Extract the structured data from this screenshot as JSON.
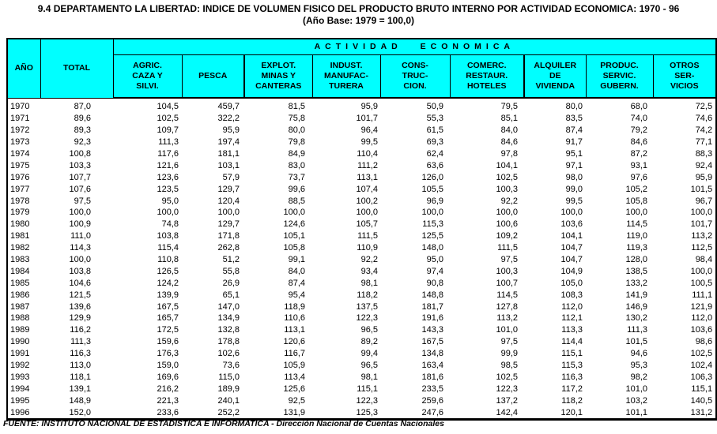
{
  "title": "9.4  DEPARTAMENTO  LA LIBERTAD: INDICE DE VOLUMEN FISICO DEL PRODUCTO BRUTO INTERNO POR ACTIVIDAD ECONOMICA: 1970 - 96",
  "subtitle": "(Año Base: 1979 = 100,0)",
  "footer": "FUENTE: INSTITUTO NACIONAL DE ESTADISTICA E INFORMATICA - Dirección Nacional de Cuentas Nacionales",
  "colors": {
    "header_bg": "#00FFFF",
    "border": "#000000",
    "text": "#000000"
  },
  "table": {
    "group_header": "ACTIVIDAD ECONOMICA",
    "col_year": "AÑO",
    "col_total": "TOTAL",
    "activity_columns": [
      {
        "lines": [
          "AGRIC.",
          "CAZA Y",
          "SILVI."
        ]
      },
      {
        "lines": [
          "PESCA"
        ]
      },
      {
        "lines": [
          "EXPLOT.",
          "MINAS  Y",
          "CANTERAS"
        ]
      },
      {
        "lines": [
          "INDUST.",
          "MANUFAC-",
          "TURERA"
        ]
      },
      {
        "lines": [
          "CONS-",
          "TRUC-",
          "CION."
        ]
      },
      {
        "lines": [
          "COMERC.",
          "RESTAUR.",
          "HOTELES"
        ]
      },
      {
        "lines": [
          "ALQUILER",
          "DE",
          "VIVIENDA"
        ]
      },
      {
        "lines": [
          "PRODUC.",
          "SERVIC.",
          "GUBERN."
        ]
      },
      {
        "lines": [
          "OTROS",
          "SER-",
          "VICIOS"
        ]
      }
    ],
    "rows": [
      {
        "year": "1970",
        "values": [
          "87,0",
          "104,5",
          "459,7",
          "81,5",
          "95,9",
          "50,9",
          "79,5",
          "80,0",
          "68,0",
          "72,5"
        ]
      },
      {
        "year": "1971",
        "values": [
          "89,6",
          "102,5",
          "322,2",
          "75,8",
          "101,7",
          "55,3",
          "85,1",
          "83,5",
          "74,0",
          "74,6"
        ]
      },
      {
        "year": "1972",
        "values": [
          "89,3",
          "109,7",
          "95,9",
          "80,0",
          "96,4",
          "61,5",
          "84,0",
          "87,4",
          "79,2",
          "74,2"
        ]
      },
      {
        "year": "1973",
        "values": [
          "92,3",
          "111,3",
          "197,4",
          "79,8",
          "99,5",
          "69,3",
          "84,6",
          "91,7",
          "84,6",
          "77,1"
        ]
      },
      {
        "year": "1974",
        "values": [
          "100,8",
          "117,6",
          "181,1",
          "84,9",
          "110,4",
          "62,4",
          "97,8",
          "95,1",
          "87,2",
          "88,3"
        ]
      },
      {
        "year": "1975",
        "values": [
          "103,3",
          "121,6",
          "103,1",
          "83,0",
          "111,2",
          "63,6",
          "104,1",
          "97,1",
          "93,1",
          "92,4"
        ]
      },
      {
        "year": "1976",
        "values": [
          "107,7",
          "123,6",
          "57,9",
          "73,7",
          "113,1",
          "126,0",
          "102,5",
          "98,0",
          "97,6",
          "95,9"
        ]
      },
      {
        "year": "1977",
        "values": [
          "107,6",
          "123,5",
          "129,7",
          "99,6",
          "107,4",
          "105,5",
          "100,3",
          "99,0",
          "105,2",
          "101,5"
        ]
      },
      {
        "year": "1978",
        "values": [
          "97,5",
          "95,0",
          "120,4",
          "88,5",
          "100,2",
          "96,9",
          "92,2",
          "99,5",
          "105,8",
          "96,7"
        ]
      },
      {
        "year": "1979",
        "values": [
          "100,0",
          "100,0",
          "100,0",
          "100,0",
          "100,0",
          "100,0",
          "100,0",
          "100,0",
          "100,0",
          "100,0"
        ]
      },
      {
        "year": "1980",
        "values": [
          "100,9",
          "74,8",
          "129,7",
          "124,6",
          "105,7",
          "115,3",
          "100,6",
          "103,6",
          "114,5",
          "101,7"
        ]
      },
      {
        "year": "1981",
        "values": [
          "111,0",
          "103,8",
          "171,8",
          "105,1",
          "111,5",
          "125,5",
          "109,2",
          "104,1",
          "119,0",
          "113,2"
        ]
      },
      {
        "year": "1982",
        "values": [
          "114,3",
          "115,4",
          "262,8",
          "105,8",
          "110,9",
          "148,0",
          "111,5",
          "104,7",
          "119,3",
          "112,5"
        ]
      },
      {
        "year": "1983",
        "values": [
          "100,0",
          "110,8",
          "51,2",
          "99,1",
          "92,2",
          "95,0",
          "97,5",
          "104,7",
          "128,0",
          "98,4"
        ]
      },
      {
        "year": "1984",
        "values": [
          "103,8",
          "126,5",
          "55,8",
          "84,0",
          "93,4",
          "97,4",
          "100,3",
          "104,9",
          "138,5",
          "100,0"
        ]
      },
      {
        "year": "1985",
        "values": [
          "104,6",
          "124,2",
          "26,9",
          "87,4",
          "98,1",
          "90,8",
          "100,7",
          "105,0",
          "133,2",
          "100,5"
        ]
      },
      {
        "year": "1986",
        "values": [
          "121,5",
          "139,9",
          "65,1",
          "95,4",
          "118,2",
          "148,8",
          "114,5",
          "108,3",
          "141,9",
          "111,1"
        ]
      },
      {
        "year": "1987",
        "values": [
          "139,6",
          "167,5",
          "147,0",
          "118,9",
          "137,5",
          "181,7",
          "127,8",
          "112,0",
          "146,9",
          "121,9"
        ]
      },
      {
        "year": "1988",
        "values": [
          "129,9",
          "165,7",
          "134,9",
          "110,6",
          "122,3",
          "191,6",
          "113,2",
          "112,1",
          "130,2",
          "112,0"
        ]
      },
      {
        "year": "1989",
        "values": [
          "116,2",
          "172,5",
          "132,8",
          "113,1",
          "96,5",
          "143,3",
          "101,0",
          "113,3",
          "111,3",
          "103,6"
        ]
      },
      {
        "year": "1990",
        "values": [
          "111,3",
          "159,6",
          "178,8",
          "120,6",
          "89,2",
          "167,5",
          "97,5",
          "114,4",
          "101,5",
          "98,6"
        ]
      },
      {
        "year": "1991",
        "values": [
          "116,3",
          "176,3",
          "102,6",
          "116,7",
          "99,4",
          "134,8",
          "99,9",
          "115,1",
          "94,6",
          "102,5"
        ]
      },
      {
        "year": "1992",
        "values": [
          "113,0",
          "159,0",
          "73,6",
          "105,9",
          "96,5",
          "163,4",
          "98,5",
          "115,3",
          "95,3",
          "102,4"
        ]
      },
      {
        "year": "1993",
        "values": [
          "118,1",
          "169,6",
          "115,0",
          "113,4",
          "98,1",
          "181,6",
          "102,5",
          "116,3",
          "98,2",
          "106,3"
        ]
      },
      {
        "year": "1994",
        "values": [
          "139,1",
          "216,2",
          "189,9",
          "125,6",
          "115,1",
          "233,5",
          "122,3",
          "117,2",
          "101,0",
          "115,1"
        ]
      },
      {
        "year": "1995",
        "values": [
          "148,9",
          "221,3",
          "240,1",
          "92,5",
          "122,3",
          "259,6",
          "137,2",
          "118,2",
          "103,2",
          "140,5"
        ]
      },
      {
        "year": "1996",
        "values": [
          "152,0",
          "233,6",
          "252,2",
          "131,9",
          "125,3",
          "247,6",
          "142,4",
          "120,1",
          "101,1",
          "131,2"
        ]
      }
    ]
  }
}
